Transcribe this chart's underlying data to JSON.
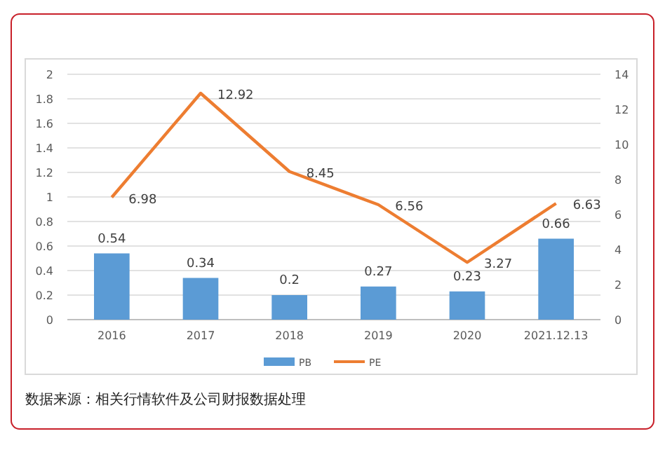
{
  "chart_data": {
    "type": "bar",
    "categories": [
      "2016",
      "2017",
      "2018",
      "2019",
      "2020",
      "2021.12.13"
    ],
    "series": [
      {
        "name": "PB",
        "color": "#5b9bd5",
        "values": [
          0.54,
          0.34,
          0.2,
          0.27,
          0.23,
          0.66
        ]
      },
      {
        "name": "PE",
        "type": "line",
        "axis": "y2",
        "color": "#ed7d31",
        "values": [
          6.98,
          12.92,
          8.45,
          6.56,
          3.27,
          6.63
        ]
      }
    ],
    "ylim": [
      0,
      2
    ],
    "yticks": [
      0,
      0.2,
      0.4,
      0.6,
      0.8,
      1,
      1.2,
      1.4,
      1.6,
      1.8,
      2
    ],
    "y2lim": [
      0,
      14
    ],
    "y2ticks": [
      0,
      2,
      4,
      6,
      8,
      10,
      12,
      14
    ],
    "grid": "y",
    "data_labels": true,
    "legend": "bottom",
    "marker": "none",
    "line_style": "solid",
    "annotations": [
      "数据来源：相关行情软件及公司财报数据处理"
    ]
  }
}
